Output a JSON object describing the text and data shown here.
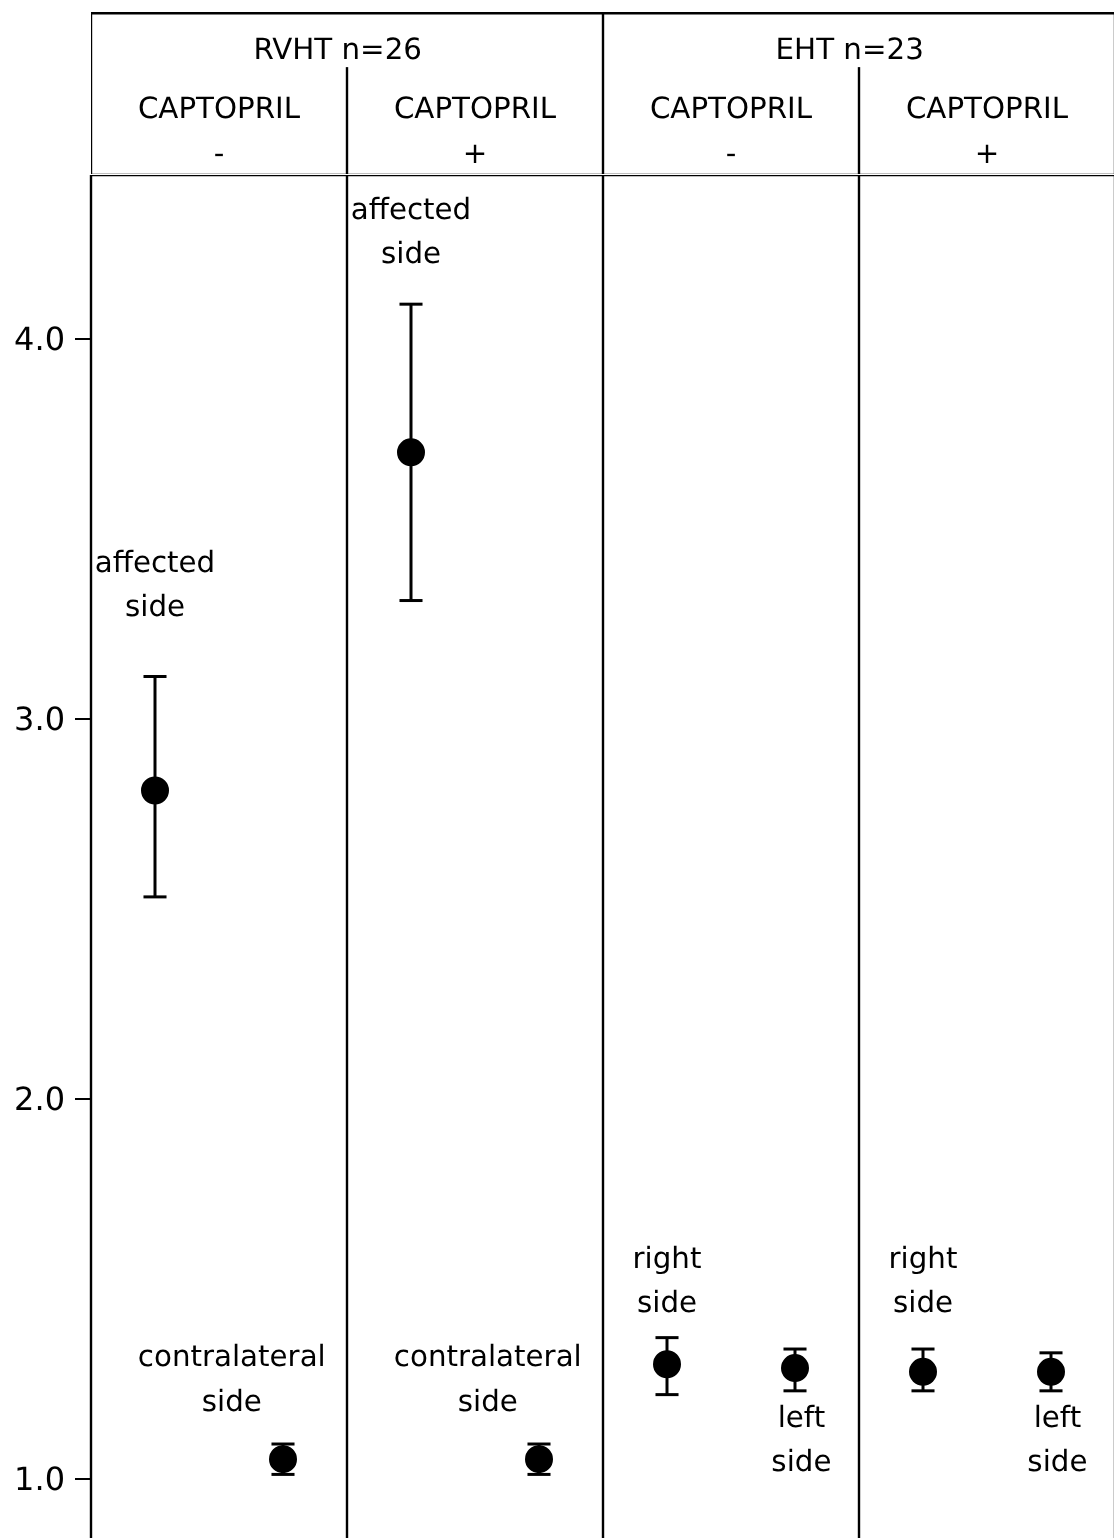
{
  "chart_data": {
    "type": "scatter",
    "categories": [
      null,
      null,
      null,
      null,
      null,
      null,
      null,
      null
    ],
    "series": [
      {
        "color": "#000000",
        "values": [
          2.81,
          1.05,
          3.7,
          1.05,
          1.3,
          1.29,
          1.28,
          1.28
        ],
        "errors": [
          [
            2.53,
            3.11
          ],
          [
            1.01,
            1.09
          ],
          [
            3.31,
            4.09
          ],
          [
            1.01,
            1.09
          ],
          [
            1.22,
            1.37
          ],
          [
            1.23,
            1.34
          ],
          [
            1.23,
            1.34
          ],
          [
            1.23,
            1.33
          ]
        ]
      }
    ],
    "ylim": [
      0.84,
      4.43
    ],
    "yticks": [
      {
        "value": 1,
        "label": "1.0"
      },
      {
        "value": 2,
        "label": "2.0"
      },
      {
        "value": 3,
        "label": "3.0"
      },
      {
        "value": 4,
        "label": "4.0"
      }
    ],
    "tick_labels": "y",
    "marker": "circle",
    "annotations": [
      "RVHT   n=26",
      "EHT   n=23",
      "CAPTOPRIL\n-",
      "CAPTOPRIL\n+",
      "CAPTOPRIL\n-",
      "CAPTOPRIL\n+",
      "affected\nside",
      "affected\nside",
      "contralateral\nside",
      "contralateral\nside",
      "right\nside",
      "left\nside",
      "right\nside",
      "left\nside"
    ]
  }
}
